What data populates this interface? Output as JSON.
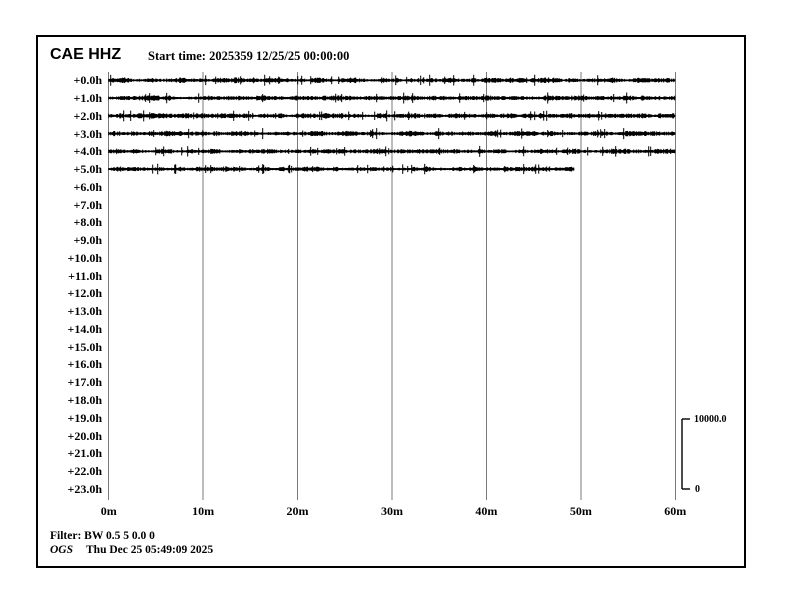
{
  "header": {
    "station": "CAE HHZ",
    "start_time_label": "Start time: 2025359 12/25/25 00:00:00"
  },
  "chart_data": {
    "type": "line",
    "subtype": "helicorder-seismogram",
    "station": "CAE",
    "channel": "HHZ",
    "start_time": "2025359 12/25/25 00:00:00",
    "x_axis": {
      "unit": "minutes",
      "range": [
        0,
        60
      ],
      "tick_minutes": [
        0,
        10,
        20,
        30,
        40,
        50,
        60
      ],
      "tick_labels": [
        "0m",
        "10m",
        "20m",
        "30m",
        "40m",
        "50m",
        "60m"
      ],
      "grid": true
    },
    "y_axis": {
      "unit": "hours offset from start",
      "row_labels": [
        "+0.0h",
        "+1.0h",
        "+2.0h",
        "+3.0h",
        "+4.0h",
        "+5.0h",
        "+6.0h",
        "+7.0h",
        "+8.0h",
        "+9.0h",
        "+10.0h",
        "+11.0h",
        "+12.0h",
        "+13.0h",
        "+14.0h",
        "+15.0h",
        "+16.0h",
        "+17.0h",
        "+18.0h",
        "+19.0h",
        "+20.0h",
        "+21.0h",
        "+22.0h",
        "+23.0h"
      ]
    },
    "traces": [
      {
        "row_index": 0,
        "row": "+0.0h",
        "start_min": 0,
        "end_min": 60
      },
      {
        "row_index": 1,
        "row": "+1.0h",
        "start_min": 0,
        "end_min": 60
      },
      {
        "row_index": 2,
        "row": "+2.0h",
        "start_min": 0,
        "end_min": 60
      },
      {
        "row_index": 3,
        "row": "+3.0h",
        "start_min": 0,
        "end_min": 60
      },
      {
        "row_index": 4,
        "row": "+4.0h",
        "start_min": 0,
        "end_min": 60
      },
      {
        "row_index": 5,
        "row": "+5.0h",
        "start_min": 0,
        "end_min": 49.3
      }
    ],
    "amplitude_scale": {
      "max_label": "10000.0",
      "min_label": "0"
    },
    "colors": {
      "trace": "#000000",
      "grid": "#7a7a7a",
      "text": "#000000",
      "border": "#000000",
      "background": "#ffffff"
    }
  },
  "footer": {
    "filter_label": "Filter: BW 0.5 5 0.0 0",
    "agency": "OGS",
    "generated": "Thu Dec 25 05:49:09 2025"
  }
}
